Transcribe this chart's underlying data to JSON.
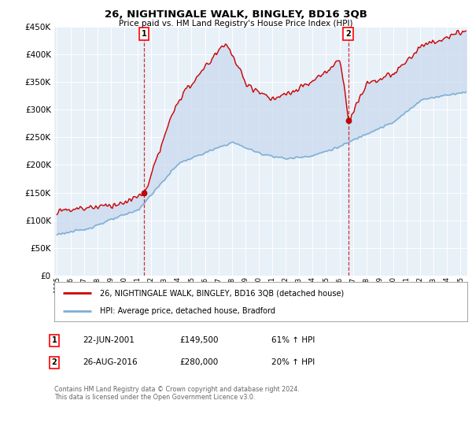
{
  "title": "26, NIGHTINGALE WALK, BINGLEY, BD16 3QB",
  "subtitle": "Price paid vs. HM Land Registry's House Price Index (HPI)",
  "ylim": [
    0,
    450000
  ],
  "xlim_start": 1994.8,
  "xlim_end": 2025.5,
  "sale1": {
    "date_num": 2001.47,
    "price": 149500,
    "label": "1"
  },
  "sale2": {
    "date_num": 2016.65,
    "price": 280000,
    "label": "2"
  },
  "legend_line1": "26, NIGHTINGALE WALK, BINGLEY, BD16 3QB (detached house)",
  "legend_line2": "HPI: Average price, detached house, Bradford",
  "table_rows": [
    {
      "num": "1",
      "date": "22-JUN-2001",
      "price": "£149,500",
      "change": "61% ↑ HPI"
    },
    {
      "num": "2",
      "date": "26-AUG-2016",
      "price": "£280,000",
      "change": "20% ↑ HPI"
    }
  ],
  "footer": "Contains HM Land Registry data © Crown copyright and database right 2024.\nThis data is licensed under the Open Government Licence v3.0.",
  "line_color_red": "#cc0000",
  "line_color_blue": "#7bafd4",
  "fill_color": "#ddeeff",
  "dashed_line_color": "#cc0000",
  "background_color": "#ffffff",
  "grid_color": "#cccccc"
}
